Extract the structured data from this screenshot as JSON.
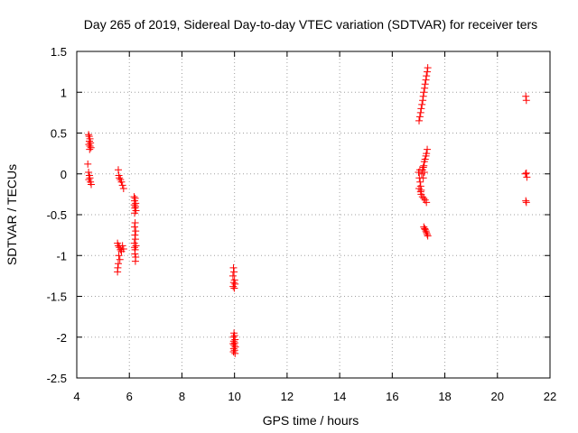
{
  "chart_data": {
    "type": "scatter",
    "title": "Day 265 of 2019, Sidereal Day-to-day VTEC variation (SDTVAR) for receiver ters",
    "xlabel": "GPS time / hours",
    "ylabel": "SDTVAR / TECUs",
    "xlim": [
      4,
      22
    ],
    "ylim": [
      -2.5,
      1.5
    ],
    "xticks": [
      4,
      6,
      8,
      10,
      12,
      14,
      16,
      18,
      20,
      22
    ],
    "yticks": [
      -2.5,
      -2,
      -1.5,
      -1,
      -0.5,
      0,
      0.5,
      1,
      1.5
    ],
    "xtick_labels": [
      "4",
      "6",
      "8",
      "10",
      "12",
      "14",
      "16",
      "18",
      "20",
      "22"
    ],
    "ytick_labels": [
      "-2.5",
      "-2",
      "-1.5",
      "-1",
      "-0.5",
      "0",
      "0.5",
      "1",
      "1.5"
    ],
    "grid": true,
    "marker": "+",
    "color": "#ff0000",
    "series": [
      {
        "name": "SDTVAR",
        "points": [
          [
            4.45,
            0.48
          ],
          [
            4.47,
            0.46
          ],
          [
            4.5,
            0.43
          ],
          [
            4.48,
            0.4
          ],
          [
            4.52,
            0.38
          ],
          [
            4.46,
            0.36
          ],
          [
            4.5,
            0.34
          ],
          [
            4.54,
            0.32
          ],
          [
            4.49,
            0.3
          ],
          [
            4.42,
            0.12
          ],
          [
            4.45,
            0.02
          ],
          [
            4.48,
            -0.02
          ],
          [
            4.5,
            -0.05
          ],
          [
            4.46,
            -0.07
          ],
          [
            4.52,
            -0.1
          ],
          [
            4.55,
            -0.13
          ],
          [
            5.58,
            0.05
          ],
          [
            5.6,
            -0.02
          ],
          [
            5.62,
            -0.05
          ],
          [
            5.66,
            -0.07
          ],
          [
            5.7,
            -0.1
          ],
          [
            5.74,
            -0.14
          ],
          [
            5.78,
            -0.18
          ],
          [
            5.55,
            -0.85
          ],
          [
            5.58,
            -0.88
          ],
          [
            5.62,
            -0.9
          ],
          [
            5.66,
            -0.93
          ],
          [
            5.7,
            -0.95
          ],
          [
            5.74,
            -0.88
          ],
          [
            5.78,
            -0.92
          ],
          [
            5.6,
            -1.0
          ],
          [
            5.64,
            -1.05
          ],
          [
            5.58,
            -1.1
          ],
          [
            5.56,
            -1.15
          ],
          [
            5.55,
            -1.2
          ],
          [
            6.18,
            -0.28
          ],
          [
            6.22,
            -0.3
          ],
          [
            6.2,
            -0.33
          ],
          [
            6.24,
            -0.36
          ],
          [
            6.19,
            -0.38
          ],
          [
            6.23,
            -0.4
          ],
          [
            6.21,
            -0.42
          ],
          [
            6.25,
            -0.45
          ],
          [
            6.2,
            -0.48
          ],
          [
            6.22,
            -0.6
          ],
          [
            6.2,
            -0.65
          ],
          [
            6.24,
            -0.7
          ],
          [
            6.21,
            -0.75
          ],
          [
            6.23,
            -0.8
          ],
          [
            6.19,
            -0.85
          ],
          [
            6.25,
            -0.88
          ],
          [
            6.2,
            -0.9
          ],
          [
            6.22,
            -0.93
          ],
          [
            6.21,
            -0.98
          ],
          [
            6.24,
            -1.02
          ],
          [
            6.23,
            -1.07
          ],
          [
            9.96,
            -1.15
          ],
          [
            9.98,
            -1.2
          ],
          [
            9.94,
            -1.25
          ],
          [
            10.0,
            -1.3
          ],
          [
            9.97,
            -1.33
          ],
          [
            10.02,
            -1.35
          ],
          [
            9.95,
            -1.38
          ],
          [
            9.99,
            -1.4
          ],
          [
            9.98,
            -1.95
          ],
          [
            10.0,
            -1.98
          ],
          [
            9.96,
            -2.0
          ],
          [
            10.02,
            -2.03
          ],
          [
            9.97,
            -2.05
          ],
          [
            10.01,
            -2.07
          ],
          [
            9.95,
            -2.08
          ],
          [
            9.99,
            -2.1
          ],
          [
            10.03,
            -2.12
          ],
          [
            9.97,
            -2.14
          ],
          [
            10.0,
            -2.16
          ],
          [
            9.96,
            -2.18
          ],
          [
            10.02,
            -2.2
          ],
          [
            17.02,
            0.65
          ],
          [
            17.05,
            0.7
          ],
          [
            17.08,
            0.75
          ],
          [
            17.1,
            0.8
          ],
          [
            17.13,
            0.85
          ],
          [
            17.16,
            0.9
          ],
          [
            17.18,
            0.95
          ],
          [
            17.2,
            1.0
          ],
          [
            17.23,
            1.05
          ],
          [
            17.25,
            1.1
          ],
          [
            17.28,
            1.15
          ],
          [
            17.3,
            1.2
          ],
          [
            17.33,
            1.25
          ],
          [
            17.35,
            1.3
          ],
          [
            17.0,
            0.02
          ],
          [
            17.03,
            -0.05
          ],
          [
            17.06,
            -0.1
          ],
          [
            17.08,
            -0.15
          ],
          [
            17.1,
            -0.2
          ],
          [
            17.02,
            -0.18
          ],
          [
            17.05,
            0.05
          ],
          [
            17.12,
            0.0
          ],
          [
            17.15,
            0.05
          ],
          [
            17.18,
            0.08
          ],
          [
            17.2,
            0.1
          ],
          [
            17.22,
            0.15
          ],
          [
            17.25,
            0.18
          ],
          [
            17.28,
            0.22
          ],
          [
            17.3,
            0.25
          ],
          [
            17.33,
            0.3
          ],
          [
            17.1,
            -0.25
          ],
          [
            17.15,
            -0.28
          ],
          [
            17.2,
            -0.3
          ],
          [
            17.25,
            -0.32
          ],
          [
            17.3,
            -0.35
          ],
          [
            17.08,
            -0.22
          ],
          [
            17.18,
            -0.05
          ],
          [
            17.22,
            0.02
          ],
          [
            17.2,
            -0.65
          ],
          [
            17.23,
            -0.67
          ],
          [
            17.25,
            -0.68
          ],
          [
            17.28,
            -0.7
          ],
          [
            17.3,
            -0.72
          ],
          [
            17.33,
            -0.74
          ],
          [
            17.35,
            -0.76
          ],
          [
            21.08,
            0.95
          ],
          [
            21.1,
            0.9
          ],
          [
            21.07,
            0.0
          ],
          [
            21.1,
            0.01
          ],
          [
            21.12,
            -0.04
          ],
          [
            21.08,
            -0.33
          ],
          [
            21.1,
            -0.35
          ]
        ]
      }
    ]
  }
}
